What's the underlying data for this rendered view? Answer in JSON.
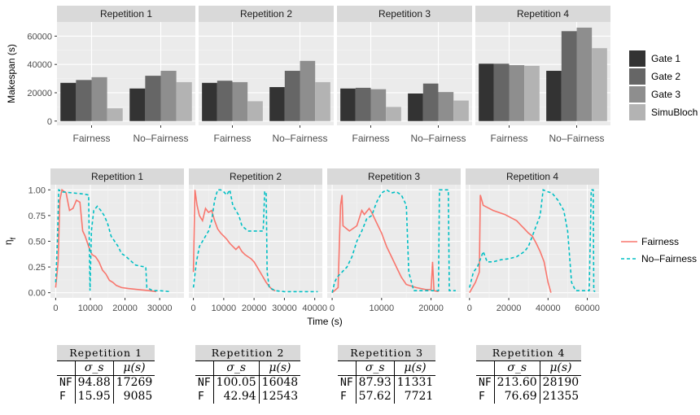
{
  "chart_data": [
    {
      "type": "bar",
      "ylabel": "Makespan (s)",
      "yticks": [
        0,
        20000,
        40000,
        60000
      ],
      "ylim": [
        -3000,
        70000
      ],
      "grid": true,
      "legend_position": "right",
      "categories": [
        "Fairness",
        "No–Fairness"
      ],
      "series_names": [
        "Gate 1",
        "Gate 2",
        "Gate 3",
        "SimuBloch"
      ],
      "series_colors": [
        "#333333",
        "#666666",
        "#8e8e8e",
        "#b3b3b3"
      ],
      "panels": [
        {
          "title": "Repetition 1",
          "values": [
            [
              27000,
              29000,
              31000,
              9000
            ],
            [
              23000,
              32000,
              35500,
              27500
            ]
          ]
        },
        {
          "title": "Repetition 2",
          "values": [
            [
              27000,
              28500,
              27500,
              14000
            ],
            [
              24000,
              35500,
              42500,
              27500
            ]
          ]
        },
        {
          "title": "Repetition 3",
          "values": [
            [
              23000,
              23500,
              22500,
              10000
            ],
            [
              19500,
              26500,
              20500,
              14500
            ]
          ]
        },
        {
          "title": "Repetition 4",
          "values": [
            [
              40500,
              40500,
              39500,
              39000
            ],
            [
              35500,
              63500,
              66000,
              51500
            ]
          ]
        }
      ]
    },
    {
      "type": "line",
      "xlabel": "Time (s)",
      "ylabel": "η_f",
      "yticks": [
        "0.00",
        "0.25",
        "0.50",
        "0.75",
        "1.00"
      ],
      "ylim": [
        -0.05,
        1.05
      ],
      "grid": true,
      "legend_position": "right",
      "series_names": [
        "Fairness",
        "No–Fairness"
      ],
      "series_colors": [
        "#f8766d",
        "#00bfc4"
      ],
      "panels": [
        {
          "title": "Repetition 1",
          "xlim": [
            -1500,
            37000
          ],
          "xticks": [
            0,
            10000,
            20000,
            30000
          ],
          "xticklabels": [
            "0",
            "10000",
            "20000",
            "30000"
          ],
          "fairness": [
            [
              0,
              0.05
            ],
            [
              700,
              0.3
            ],
            [
              1200,
              0.9
            ],
            [
              1800,
              1.0
            ],
            [
              3000,
              0.97
            ],
            [
              4000,
              0.8
            ],
            [
              5000,
              0.82
            ],
            [
              6000,
              0.9
            ],
            [
              7000,
              0.88
            ],
            [
              7800,
              0.6
            ],
            [
              8500,
              0.55
            ],
            [
              9500,
              0.45
            ],
            [
              10500,
              0.37
            ],
            [
              11500,
              0.35
            ],
            [
              12500,
              0.3
            ],
            [
              13500,
              0.22
            ],
            [
              14500,
              0.18
            ],
            [
              15500,
              0.12
            ],
            [
              16500,
              0.1
            ],
            [
              17500,
              0.07
            ],
            [
              19000,
              0.05
            ],
            [
              21000,
              0.04
            ],
            [
              24000,
              0.03
            ],
            [
              27000,
              0.02
            ],
            [
              29000,
              0.01
            ]
          ],
          "nofairness": [
            [
              0,
              0.1
            ],
            [
              500,
              0.5
            ],
            [
              900,
              1.0
            ],
            [
              2000,
              0.98
            ],
            [
              5000,
              0.97
            ],
            [
              8000,
              0.96
            ],
            [
              9500,
              0.95
            ],
            [
              9900,
              0.02
            ],
            [
              10300,
              0.6
            ],
            [
              11000,
              0.8
            ],
            [
              12000,
              0.84
            ],
            [
              13000,
              0.8
            ],
            [
              14000,
              0.75
            ],
            [
              15000,
              0.67
            ],
            [
              16000,
              0.55
            ],
            [
              17000,
              0.5
            ],
            [
              18000,
              0.45
            ],
            [
              19000,
              0.38
            ],
            [
              20000,
              0.36
            ],
            [
              22000,
              0.3
            ],
            [
              23000,
              0.27
            ],
            [
              24000,
              0.26
            ],
            [
              26000,
              0.25
            ],
            [
              26300,
              0.05
            ],
            [
              28000,
              0.02
            ],
            [
              30000,
              0.02
            ],
            [
              33000,
              0.01
            ]
          ]
        },
        {
          "title": "Repetition 2",
          "xlim": [
            -1500,
            42500
          ],
          "xticks": [
            0,
            10000,
            20000,
            30000,
            40000
          ],
          "xticklabels": [
            "0",
            "10000",
            "20000",
            "30000",
            "40000"
          ],
          "fairness": [
            [
              0,
              0.2
            ],
            [
              500,
              1.0
            ],
            [
              1200,
              0.85
            ],
            [
              2000,
              0.75
            ],
            [
              3000,
              0.7
            ],
            [
              4000,
              0.82
            ],
            [
              5000,
              0.78
            ],
            [
              6000,
              0.8
            ],
            [
              7000,
              0.7
            ],
            [
              8000,
              0.62
            ],
            [
              9000,
              0.58
            ],
            [
              10000,
              0.55
            ],
            [
              11000,
              0.52
            ],
            [
              12000,
              0.48
            ],
            [
              13000,
              0.45
            ],
            [
              14000,
              0.42
            ],
            [
              15000,
              0.45
            ],
            [
              16000,
              0.4
            ],
            [
              17000,
              0.37
            ],
            [
              18000,
              0.35
            ],
            [
              19000,
              0.33
            ],
            [
              20000,
              0.3
            ],
            [
              21000,
              0.25
            ],
            [
              22000,
              0.2
            ],
            [
              23000,
              0.15
            ],
            [
              24000,
              0.1
            ],
            [
              25000,
              0.06
            ],
            [
              26000,
              0.03
            ],
            [
              27000,
              0.02
            ]
          ],
          "nofairness": [
            [
              0,
              0.05
            ],
            [
              1000,
              0.3
            ],
            [
              2000,
              0.45
            ],
            [
              3000,
              0.5
            ],
            [
              4000,
              0.55
            ],
            [
              5000,
              0.6
            ],
            [
              6000,
              0.7
            ],
            [
              7000,
              0.9
            ],
            [
              8000,
              1.0
            ],
            [
              9000,
              1.0
            ],
            [
              10000,
              0.98
            ],
            [
              11000,
              0.95
            ],
            [
              12000,
              1.0
            ],
            [
              13000,
              0.85
            ],
            [
              14000,
              0.8
            ],
            [
              15000,
              0.75
            ],
            [
              16000,
              0.65
            ],
            [
              18000,
              0.6
            ],
            [
              20000,
              0.6
            ],
            [
              22000,
              0.6
            ],
            [
              23000,
              0.6
            ],
            [
              23500,
              0.98
            ],
            [
              24000,
              0.98
            ],
            [
              24300,
              0.2
            ],
            [
              25000,
              0.05
            ],
            [
              27000,
              0.02
            ],
            [
              30000,
              0.01
            ],
            [
              35000,
              0.01
            ],
            [
              41000,
              0.01
            ]
          ]
        },
        {
          "title": "Repetition 3",
          "xlim": [
            -1000,
            26000
          ],
          "xticks": [
            0,
            10000,
            20000
          ],
          "xticklabels": [
            "0",
            "10000",
            "20000"
          ],
          "fairness": [
            [
              0,
              0.0
            ],
            [
              1200,
              0.05
            ],
            [
              1500,
              0.55
            ],
            [
              1700,
              0.85
            ],
            [
              2000,
              0.95
            ],
            [
              2200,
              0.65
            ],
            [
              3500,
              0.6
            ],
            [
              5000,
              0.65
            ],
            [
              6000,
              0.8
            ],
            [
              6500,
              0.76
            ],
            [
              7500,
              0.82
            ],
            [
              8000,
              0.78
            ],
            [
              9000,
              0.68
            ],
            [
              10000,
              0.58
            ],
            [
              11000,
              0.45
            ],
            [
              12000,
              0.35
            ],
            [
              13000,
              0.25
            ],
            [
              14000,
              0.15
            ],
            [
              15000,
              0.08
            ],
            [
              17000,
              0.05
            ],
            [
              19000,
              0.03
            ],
            [
              20000,
              0.03
            ],
            [
              20300,
              0.3
            ],
            [
              20600,
              0.02
            ],
            [
              21500,
              0.01
            ]
          ],
          "nofairness": [
            [
              0,
              0.0
            ],
            [
              500,
              0.1
            ],
            [
              1000,
              0.15
            ],
            [
              2000,
              0.2
            ],
            [
              3000,
              0.25
            ],
            [
              4000,
              0.35
            ],
            [
              5000,
              0.5
            ],
            [
              6000,
              0.6
            ],
            [
              7000,
              0.72
            ],
            [
              8000,
              0.75
            ],
            [
              9000,
              0.88
            ],
            [
              10000,
              0.97
            ],
            [
              11000,
              1.0
            ],
            [
              12000,
              0.97
            ],
            [
              13000,
              0.98
            ],
            [
              14000,
              0.95
            ],
            [
              15000,
              0.85
            ],
            [
              15500,
              0.2
            ],
            [
              16500,
              0.02
            ],
            [
              18000,
              0.02
            ],
            [
              19500,
              0.02
            ],
            [
              20000,
              0.02
            ],
            [
              20500,
              0.02
            ],
            [
              21000,
              0.02
            ],
            [
              21500,
              0.02
            ],
            [
              21700,
              1.0
            ],
            [
              23500,
              1.0
            ],
            [
              23700,
              0.02
            ],
            [
              25000,
              0.02
            ]
          ]
        },
        {
          "title": "Repetition 4",
          "xlim": [
            -2000,
            66000
          ],
          "xticks": [
            0,
            20000,
            40000,
            60000
          ],
          "xticklabels": [
            "0",
            "20000",
            "40000",
            "60000"
          ],
          "fairness": [
            [
              0,
              0.0
            ],
            [
              3000,
              0.1
            ],
            [
              5000,
              0.2
            ],
            [
              5500,
              0.95
            ],
            [
              7000,
              0.85
            ],
            [
              9000,
              0.83
            ],
            [
              12000,
              0.8
            ],
            [
              15000,
              0.78
            ],
            [
              18000,
              0.76
            ],
            [
              21000,
              0.73
            ],
            [
              24000,
              0.7
            ],
            [
              26000,
              0.66
            ],
            [
              28000,
              0.62
            ],
            [
              30000,
              0.58
            ],
            [
              32000,
              0.55
            ],
            [
              34000,
              0.48
            ],
            [
              36000,
              0.4
            ],
            [
              38000,
              0.3
            ],
            [
              40000,
              0.1
            ],
            [
              41500,
              0.0
            ]
          ],
          "nofairness": [
            [
              0,
              0.05
            ],
            [
              2000,
              0.2
            ],
            [
              4000,
              0.25
            ],
            [
              6000,
              0.35
            ],
            [
              7000,
              0.4
            ],
            [
              9000,
              0.3
            ],
            [
              12000,
              0.3
            ],
            [
              16000,
              0.32
            ],
            [
              20000,
              0.33
            ],
            [
              24000,
              0.35
            ],
            [
              28000,
              0.4
            ],
            [
              30000,
              0.45
            ],
            [
              32000,
              0.55
            ],
            [
              34000,
              0.65
            ],
            [
              36000,
              0.75
            ],
            [
              37500,
              1.0
            ],
            [
              40000,
              0.98
            ],
            [
              42000,
              0.97
            ],
            [
              45000,
              0.9
            ],
            [
              48000,
              0.8
            ],
            [
              50000,
              0.6
            ],
            [
              52000,
              0.1
            ],
            [
              54000,
              0.02
            ],
            [
              58000,
              0.02
            ],
            [
              61000,
              0.02
            ],
            [
              62000,
              1.0
            ],
            [
              63000,
              1.0
            ],
            [
              63300,
              0.02
            ],
            [
              64000,
              0.01
            ]
          ]
        }
      ]
    }
  ],
  "tables": [
    {
      "title": "Repetition 1",
      "col1": "σ_s",
      "col2": "μ(s)",
      "rows": [
        {
          "label": "NF",
          "sigma": "94.88",
          "mu": "17269"
        },
        {
          "label": "F",
          "sigma": "15.95",
          "mu": "9085"
        }
      ]
    },
    {
      "title": "Repetition 2",
      "col1": "σ_s",
      "col2": "μ(s)",
      "rows": [
        {
          "label": "NF",
          "sigma": "100.05",
          "mu": "16048"
        },
        {
          "label": "F",
          "sigma": "42.94",
          "mu": "12543"
        }
      ]
    },
    {
      "title": "Repetition 3",
      "col1": "σ_s",
      "col2": "μ(s)",
      "rows": [
        {
          "label": "NF",
          "sigma": "87.93",
          "mu": "11331"
        },
        {
          "label": "F",
          "sigma": "57.62",
          "mu": "7721"
        }
      ]
    },
    {
      "title": "Repetition 4",
      "col1": "σ_s",
      "col2": "μ(s)",
      "rows": [
        {
          "label": "NF",
          "sigma": "213.60",
          "mu": "28190"
        },
        {
          "label": "F",
          "sigma": "76.69",
          "mu": "21355"
        }
      ]
    }
  ]
}
